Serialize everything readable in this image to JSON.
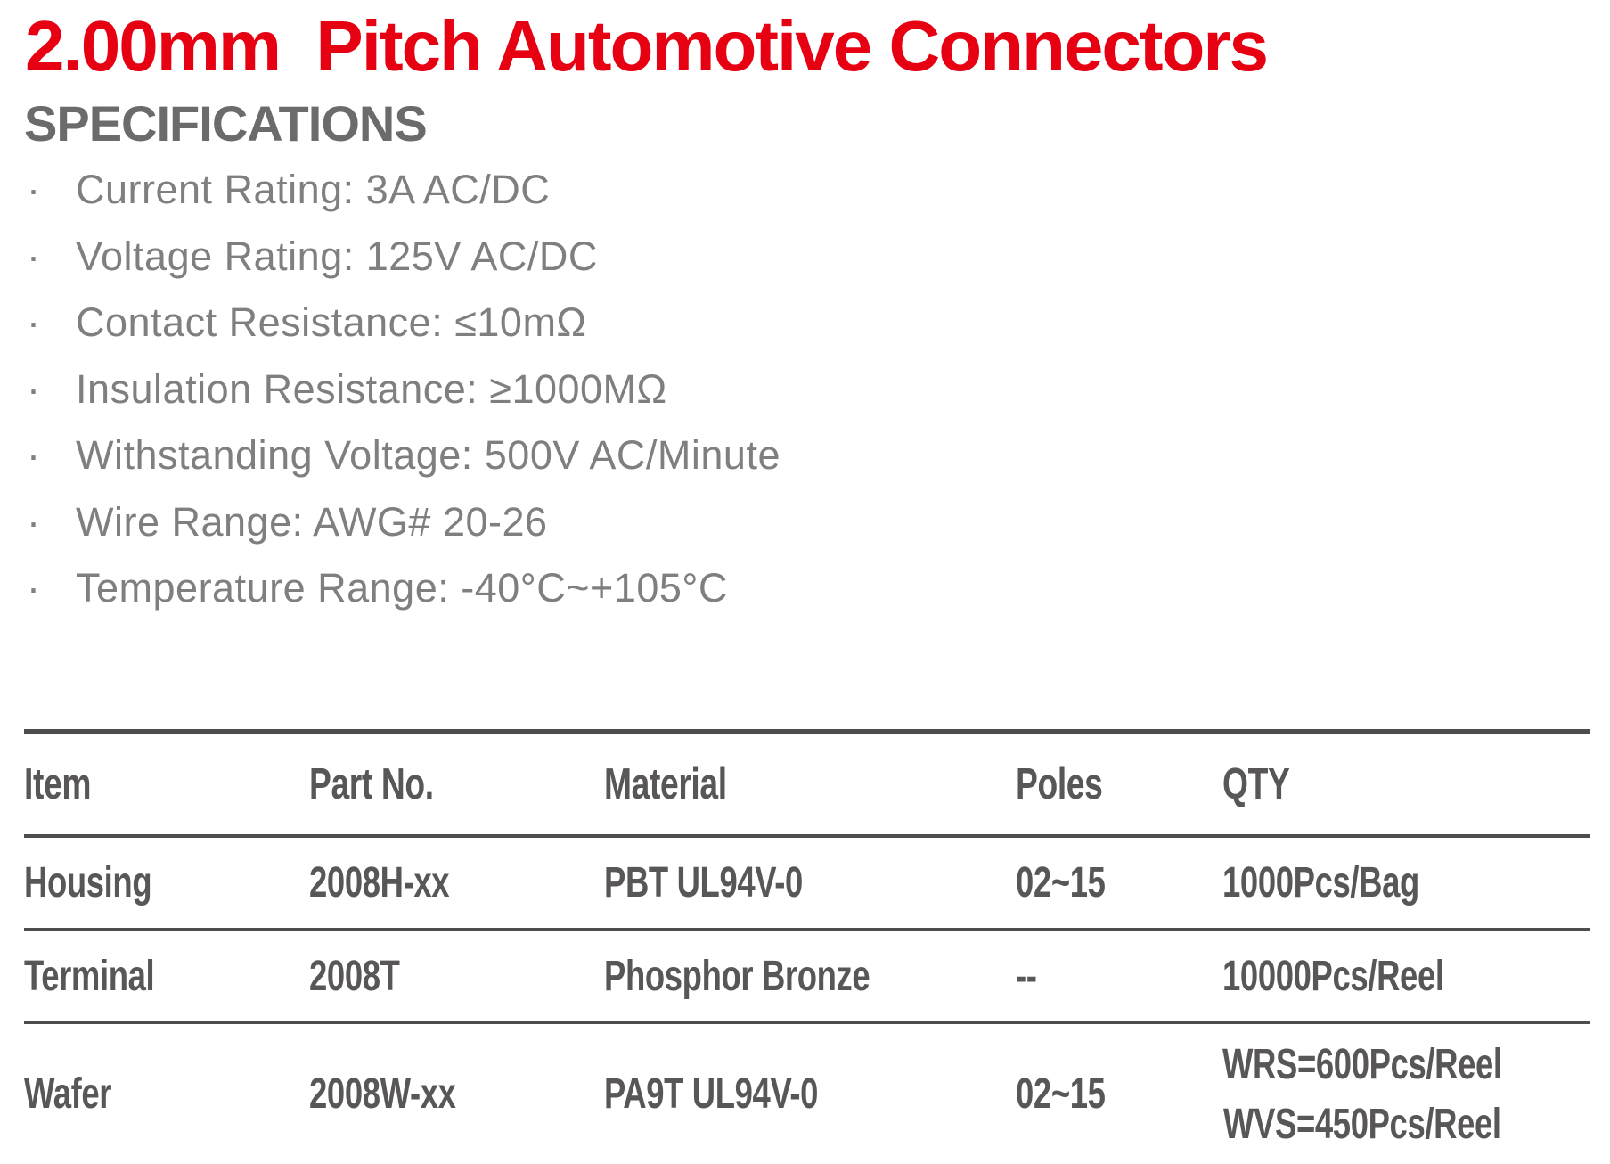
{
  "page": {
    "title": "2.00mm  Pitch Automotive Connectors",
    "colors": {
      "title_red": "#e60012",
      "heading_gray": "#6b6b6b",
      "body_gray": "#7f7f7f",
      "table_gray": "#585656",
      "rule_gray": "#4d4d4d"
    }
  },
  "specifications": {
    "heading": "SPECIFICATIONS",
    "bullet": "·",
    "items": [
      "Current Rating: 3A AC/DC",
      "Voltage Rating: 125V AC/DC",
      "Contact Resistance: ≤10mΩ",
      "Insulation Resistance: ≥1000MΩ",
      "Withstanding Voltage: 500V AC/Minute",
      "Wire Range: AWG# 20-26",
      "Temperature Range: -40°C~+105°C"
    ]
  },
  "table": {
    "headers": [
      "Item",
      "Part No.",
      "Material",
      "Poles",
      "QTY"
    ],
    "rows": [
      {
        "item": "Housing",
        "part_no": "2008H-xx",
        "material": "PBT UL94V-0",
        "poles": "02~15",
        "qty": [
          "1000Pcs/Bag"
        ]
      },
      {
        "item": "Terminal",
        "part_no": "2008T",
        "material": "Phosphor Bronze",
        "poles": "--",
        "qty": [
          "10000Pcs/Reel"
        ]
      },
      {
        "item": "Wafer",
        "part_no": "2008W-xx",
        "material": "PA9T UL94V-0",
        "poles": "02~15",
        "qty": [
          "WRS=600Pcs/Reel",
          "WVS=450Pcs/Reel"
        ]
      }
    ]
  }
}
